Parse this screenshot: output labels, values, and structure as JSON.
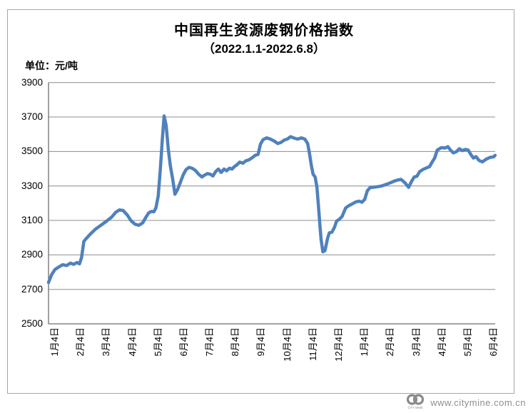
{
  "header": {
    "title": "中国再生资源废钢价格指数",
    "subtitle": "（2022.1.1-2022.6.8）",
    "unit_label": "单位：元/吨"
  },
  "footer": {
    "url": "www.citymine.com.cn",
    "logo_text": "CITY MINE"
  },
  "chart_data": {
    "type": "line",
    "title": "中国再生资源废钢价格指数",
    "subtitle": "（2022.1.1-2022.6.8）",
    "ylabel": "元/吨",
    "ylim": [
      2500,
      3900
    ],
    "y_ticks": [
      3900,
      3700,
      3500,
      3300,
      3100,
      2900,
      2700,
      2500
    ],
    "grid": true,
    "legend": "none",
    "categories": [
      "1月4日",
      "2月4日",
      "3月4日",
      "4月4日",
      "5月4日",
      "6月4日",
      "7月4日",
      "8月4日",
      "9月4日",
      "10月4日",
      "11月4日",
      "12月4日",
      "1月4日",
      "2月4日",
      "3月4日",
      "4月4日",
      "5月4日",
      "6月4日"
    ],
    "x_unit": "month index, 0 = first 1月4日 label",
    "line_color": "#4F81BD",
    "grid_color": "#8C8C8C",
    "axis_color": "#6E6E6E",
    "frame_border_color": "#A6A6A6",
    "points": [
      [
        -0.25,
        2740
      ],
      [
        -0.13,
        2785
      ],
      [
        0,
        2815
      ],
      [
        0.15,
        2830
      ],
      [
        0.3,
        2843
      ],
      [
        0.45,
        2838
      ],
      [
        0.6,
        2852
      ],
      [
        0.73,
        2845
      ],
      [
        0.85,
        2856
      ],
      [
        0.95,
        2848
      ],
      [
        1.03,
        2885
      ],
      [
        1.12,
        2978
      ],
      [
        1.22,
        2996
      ],
      [
        1.38,
        3022
      ],
      [
        1.56,
        3048
      ],
      [
        1.76,
        3070
      ],
      [
        2.0,
        3096
      ],
      [
        2.2,
        3120
      ],
      [
        2.36,
        3148
      ],
      [
        2.5,
        3161
      ],
      [
        2.64,
        3158
      ],
      [
        2.8,
        3132
      ],
      [
        2.95,
        3098
      ],
      [
        3.1,
        3078
      ],
      [
        3.25,
        3072
      ],
      [
        3.4,
        3086
      ],
      [
        3.52,
        3118
      ],
      [
        3.63,
        3143
      ],
      [
        3.73,
        3152
      ],
      [
        3.83,
        3150
      ],
      [
        3.91,
        3172
      ],
      [
        4.0,
        3240
      ],
      [
        4.08,
        3390
      ],
      [
        4.16,
        3570
      ],
      [
        4.23,
        3706
      ],
      [
        4.31,
        3650
      ],
      [
        4.39,
        3515
      ],
      [
        4.47,
        3418
      ],
      [
        4.56,
        3340
      ],
      [
        4.65,
        3252
      ],
      [
        4.76,
        3282
      ],
      [
        4.87,
        3325
      ],
      [
        4.97,
        3365
      ],
      [
        5.08,
        3395
      ],
      [
        5.2,
        3408
      ],
      [
        5.32,
        3402
      ],
      [
        5.44,
        3390
      ],
      [
        5.57,
        3368
      ],
      [
        5.69,
        3352
      ],
      [
        5.8,
        3363
      ],
      [
        5.91,
        3372
      ],
      [
        6.02,
        3368
      ],
      [
        6.12,
        3358
      ],
      [
        6.23,
        3384
      ],
      [
        6.33,
        3398
      ],
      [
        6.44,
        3378
      ],
      [
        6.55,
        3398
      ],
      [
        6.65,
        3388
      ],
      [
        6.76,
        3403
      ],
      [
        6.86,
        3398
      ],
      [
        6.95,
        3412
      ],
      [
        7.05,
        3423
      ],
      [
        7.16,
        3438
      ],
      [
        7.28,
        3432
      ],
      [
        7.4,
        3446
      ],
      [
        7.52,
        3452
      ],
      [
        7.64,
        3464
      ],
      [
        7.76,
        3478
      ],
      [
        7.87,
        3483
      ],
      [
        7.96,
        3542
      ],
      [
        8.06,
        3568
      ],
      [
        8.2,
        3579
      ],
      [
        8.35,
        3572
      ],
      [
        8.5,
        3560
      ],
      [
        8.63,
        3546
      ],
      [
        8.76,
        3553
      ],
      [
        8.88,
        3566
      ],
      [
        9.0,
        3572
      ],
      [
        9.13,
        3586
      ],
      [
        9.26,
        3578
      ],
      [
        9.4,
        3572
      ],
      [
        9.55,
        3579
      ],
      [
        9.68,
        3572
      ],
      [
        9.79,
        3546
      ],
      [
        9.86,
        3490
      ],
      [
        9.93,
        3420
      ],
      [
        10.0,
        3368
      ],
      [
        10.08,
        3352
      ],
      [
        10.15,
        3292
      ],
      [
        10.21,
        3180
      ],
      [
        10.26,
        3080
      ],
      [
        10.31,
        2990
      ],
      [
        10.38,
        2918
      ],
      [
        10.46,
        2924
      ],
      [
        10.56,
        2996
      ],
      [
        10.63,
        3028
      ],
      [
        10.73,
        3032
      ],
      [
        10.83,
        3060
      ],
      [
        10.91,
        3096
      ],
      [
        11.01,
        3106
      ],
      [
        11.12,
        3122
      ],
      [
        11.26,
        3172
      ],
      [
        11.39,
        3186
      ],
      [
        11.52,
        3196
      ],
      [
        11.66,
        3208
      ],
      [
        11.79,
        3212
      ],
      [
        11.89,
        3205
      ],
      [
        12.0,
        3222
      ],
      [
        12.1,
        3272
      ],
      [
        12.21,
        3291
      ],
      [
        12.36,
        3293
      ],
      [
        12.51,
        3296
      ],
      [
        12.66,
        3300
      ],
      [
        12.81,
        3308
      ],
      [
        12.96,
        3316
      ],
      [
        13.11,
        3326
      ],
      [
        13.26,
        3334
      ],
      [
        13.41,
        3338
      ],
      [
        13.56,
        3318
      ],
      [
        13.7,
        3292
      ],
      [
        13.82,
        3328
      ],
      [
        13.92,
        3352
      ],
      [
        14.02,
        3356
      ],
      [
        14.13,
        3383
      ],
      [
        14.26,
        3396
      ],
      [
        14.41,
        3406
      ],
      [
        14.51,
        3412
      ],
      [
        14.61,
        3438
      ],
      [
        14.71,
        3462
      ],
      [
        14.81,
        3508
      ],
      [
        14.96,
        3522
      ],
      [
        15.11,
        3520
      ],
      [
        15.22,
        3528
      ],
      [
        15.32,
        3508
      ],
      [
        15.43,
        3492
      ],
      [
        15.56,
        3500
      ],
      [
        15.66,
        3516
      ],
      [
        15.79,
        3505
      ],
      [
        15.9,
        3512
      ],
      [
        16.01,
        3508
      ],
      [
        16.11,
        3482
      ],
      [
        16.21,
        3462
      ],
      [
        16.31,
        3470
      ],
      [
        16.43,
        3448
      ],
      [
        16.56,
        3440
      ],
      [
        16.71,
        3456
      ],
      [
        16.86,
        3466
      ],
      [
        17.0,
        3469
      ],
      [
        17.05,
        3478
      ]
    ]
  }
}
